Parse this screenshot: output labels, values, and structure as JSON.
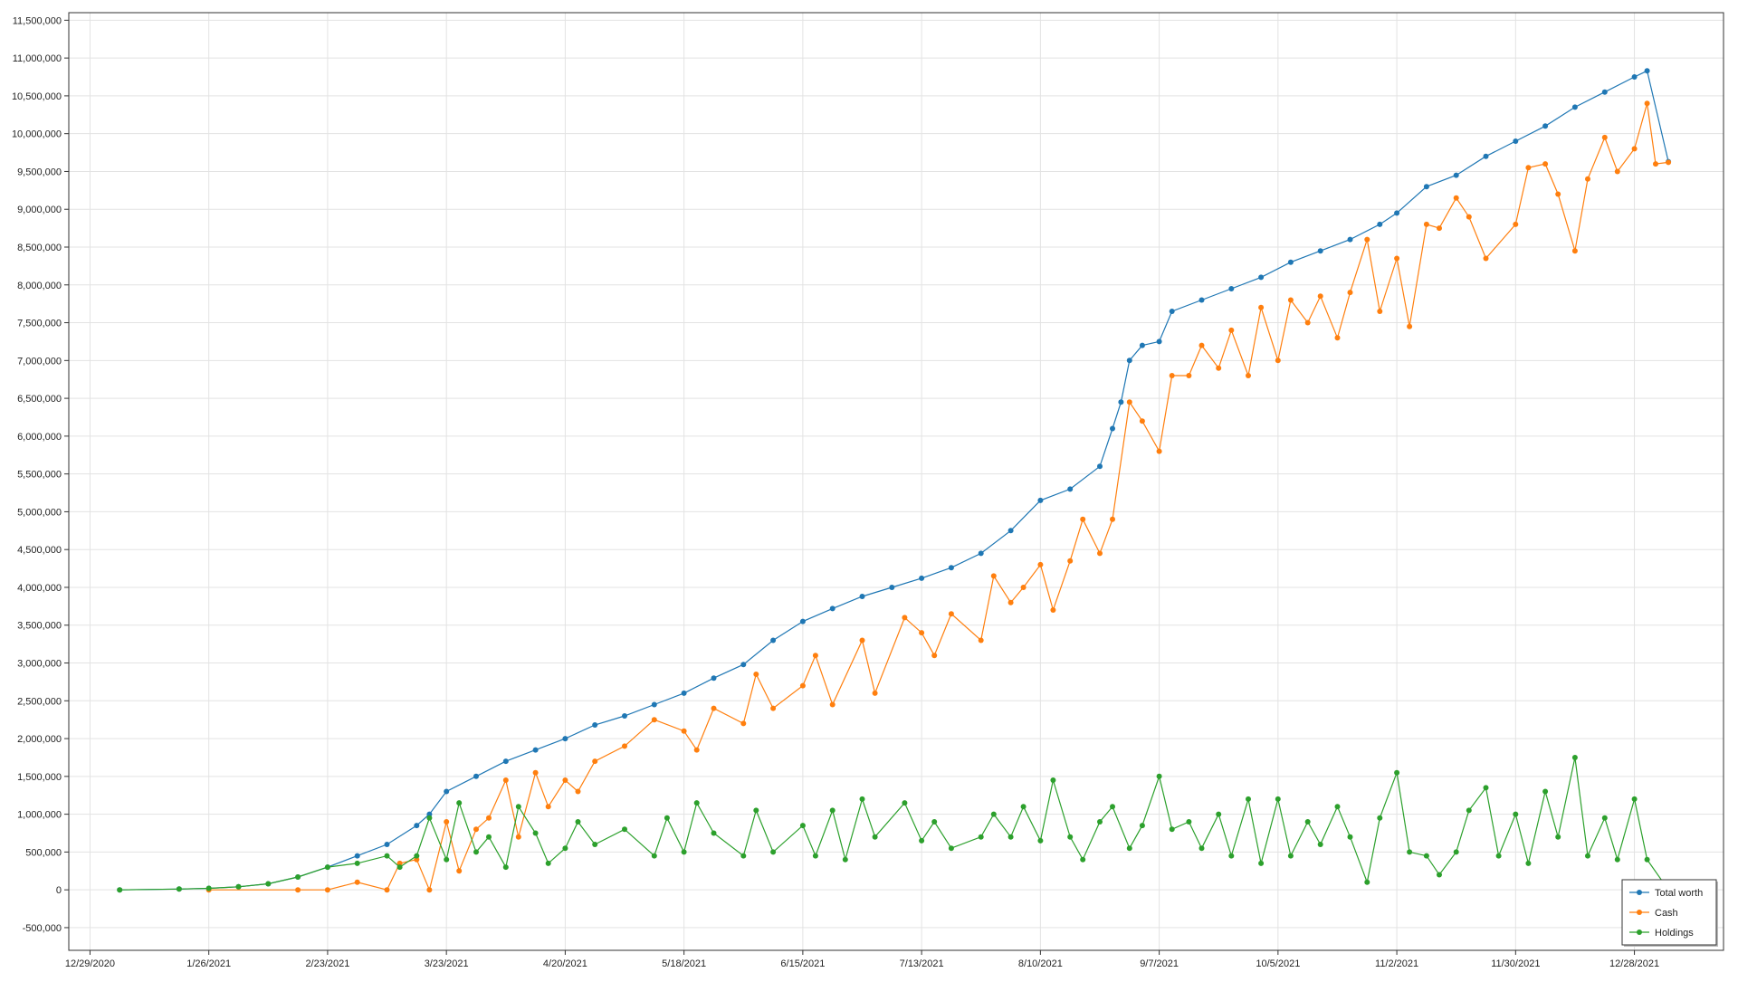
{
  "chart_data": {
    "type": "line",
    "title": "",
    "xlabel": "",
    "ylabel": "",
    "x_ticks": [
      "12/29/2020",
      "1/26/2021",
      "2/23/2021",
      "3/23/2021",
      "4/20/2021",
      "5/18/2021",
      "6/15/2021",
      "7/13/2021",
      "8/10/2021",
      "9/7/2021",
      "10/5/2021",
      "11/2/2021",
      "11/30/2021",
      "12/28/2021"
    ],
    "y_ticks": [
      "-500,000",
      "0",
      "500,000",
      "1,000,000",
      "1,500,000",
      "2,000,000",
      "2,500,000",
      "3,000,000",
      "3,500,000",
      "4,000,000",
      "4,500,000",
      "5,000,000",
      "5,500,000",
      "6,000,000",
      "6,500,000",
      "7,000,000",
      "7,500,000",
      "8,000,000",
      "8,500,000",
      "9,000,000",
      "9,500,000",
      "10,000,000",
      "10,500,000",
      "11,000,000",
      "11,500,000"
    ],
    "xlim": [
      "12/24/2020",
      "1/18/2022"
    ],
    "ylim": [
      -800000,
      11600000
    ],
    "grid": true,
    "legend_position": "bottom-right",
    "series": [
      {
        "name": "Total worth",
        "color": "#1f77b4",
        "points": [
          [
            "1/5/2021",
            0
          ],
          [
            "1/19/2021",
            10000
          ],
          [
            "1/26/2021",
            20000
          ],
          [
            "2/2/2021",
            40000
          ],
          [
            "2/9/2021",
            80000
          ],
          [
            "2/16/2021",
            170000
          ],
          [
            "2/23/2021",
            300000
          ],
          [
            "3/2/2021",
            450000
          ],
          [
            "3/9/2021",
            600000
          ],
          [
            "3/16/2021",
            850000
          ],
          [
            "3/19/2021",
            1000000
          ],
          [
            "3/23/2021",
            1300000
          ],
          [
            "3/30/2021",
            1500000
          ],
          [
            "4/6/2021",
            1700000
          ],
          [
            "4/13/2021",
            1850000
          ],
          [
            "4/20/2021",
            2000000
          ],
          [
            "4/27/2021",
            2180000
          ],
          [
            "5/4/2021",
            2300000
          ],
          [
            "5/11/2021",
            2450000
          ],
          [
            "5/18/2021",
            2600000
          ],
          [
            "5/25/2021",
            2800000
          ],
          [
            "6/1/2021",
            2980000
          ],
          [
            "6/8/2021",
            3300000
          ],
          [
            "6/15/2021",
            3550000
          ],
          [
            "6/22/2021",
            3720000
          ],
          [
            "6/29/2021",
            3880000
          ],
          [
            "7/6/2021",
            4000000
          ],
          [
            "7/13/2021",
            4120000
          ],
          [
            "7/20/2021",
            4260000
          ],
          [
            "7/27/2021",
            4450000
          ],
          [
            "8/3/2021",
            4750000
          ],
          [
            "8/10/2021",
            5150000
          ],
          [
            "8/17/2021",
            5300000
          ],
          [
            "8/24/2021",
            5600000
          ],
          [
            "8/27/2021",
            6100000
          ],
          [
            "8/29/2021",
            6450000
          ],
          [
            "8/31/2021",
            7000000
          ],
          [
            "9/3/2021",
            7200000
          ],
          [
            "9/7/2021",
            7250000
          ],
          [
            "9/10/2021",
            7650000
          ],
          [
            "9/17/2021",
            7800000
          ],
          [
            "9/24/2021",
            7950000
          ],
          [
            "10/1/2021",
            8100000
          ],
          [
            "10/8/2021",
            8300000
          ],
          [
            "10/15/2021",
            8450000
          ],
          [
            "10/22/2021",
            8600000
          ],
          [
            "10/29/2021",
            8800000
          ],
          [
            "11/2/2021",
            8950000
          ],
          [
            "11/9/2021",
            9300000
          ],
          [
            "11/16/2021",
            9450000
          ],
          [
            "11/23/2021",
            9700000
          ],
          [
            "11/30/2021",
            9900000
          ],
          [
            "12/7/2021",
            10100000
          ],
          [
            "12/14/2021",
            10350000
          ],
          [
            "12/21/2021",
            10550000
          ],
          [
            "12/28/2021",
            10750000
          ],
          [
            "12/31/2021",
            10830000
          ],
          [
            "1/5/2022",
            9630000
          ]
        ]
      },
      {
        "name": "Cash",
        "color": "#ff7f0e",
        "points": [
          [
            "1/26/2021",
            0
          ],
          [
            "2/16/2021",
            0
          ],
          [
            "2/23/2021",
            0
          ],
          [
            "3/2/2021",
            100000
          ],
          [
            "3/9/2021",
            0
          ],
          [
            "3/12/2021",
            350000
          ],
          [
            "3/16/2021",
            400000
          ],
          [
            "3/19/2021",
            0
          ],
          [
            "3/23/2021",
            900000
          ],
          [
            "3/26/2021",
            250000
          ],
          [
            "3/30/2021",
            800000
          ],
          [
            "4/2/2021",
            950000
          ],
          [
            "4/6/2021",
            1450000
          ],
          [
            "4/9/2021",
            700000
          ],
          [
            "4/13/2021",
            1550000
          ],
          [
            "4/16/2021",
            1100000
          ],
          [
            "4/20/2021",
            1450000
          ],
          [
            "4/23/2021",
            1300000
          ],
          [
            "4/27/2021",
            1700000
          ],
          [
            "5/4/2021",
            1900000
          ],
          [
            "5/11/2021",
            2250000
          ],
          [
            "5/18/2021",
            2100000
          ],
          [
            "5/21/2021",
            1850000
          ],
          [
            "5/25/2021",
            2400000
          ],
          [
            "6/1/2021",
            2200000
          ],
          [
            "6/4/2021",
            2850000
          ],
          [
            "6/8/2021",
            2400000
          ],
          [
            "6/15/2021",
            2700000
          ],
          [
            "6/18/2021",
            3100000
          ],
          [
            "6/22/2021",
            2450000
          ],
          [
            "6/29/2021",
            3300000
          ],
          [
            "7/2/2021",
            2600000
          ],
          [
            "7/9/2021",
            3600000
          ],
          [
            "7/13/2021",
            3400000
          ],
          [
            "7/16/2021",
            3100000
          ],
          [
            "7/20/2021",
            3650000
          ],
          [
            "7/27/2021",
            3300000
          ],
          [
            "7/30/2021",
            4150000
          ],
          [
            "8/3/2021",
            3800000
          ],
          [
            "8/6/2021",
            4000000
          ],
          [
            "8/10/2021",
            4300000
          ],
          [
            "8/13/2021",
            3700000
          ],
          [
            "8/17/2021",
            4350000
          ],
          [
            "8/20/2021",
            4900000
          ],
          [
            "8/24/2021",
            4450000
          ],
          [
            "8/27/2021",
            4900000
          ],
          [
            "8/31/2021",
            6450000
          ],
          [
            "9/3/2021",
            6200000
          ],
          [
            "9/7/2021",
            5800000
          ],
          [
            "9/10/2021",
            6800000
          ],
          [
            "9/14/2021",
            6800000
          ],
          [
            "9/17/2021",
            7200000
          ],
          [
            "9/21/2021",
            6900000
          ],
          [
            "9/24/2021",
            7400000
          ],
          [
            "9/28/2021",
            6800000
          ],
          [
            "10/1/2021",
            7700000
          ],
          [
            "10/5/2021",
            7000000
          ],
          [
            "10/8/2021",
            7800000
          ],
          [
            "10/12/2021",
            7500000
          ],
          [
            "10/15/2021",
            7850000
          ],
          [
            "10/19/2021",
            7300000
          ],
          [
            "10/22/2021",
            7900000
          ],
          [
            "10/26/2021",
            8600000
          ],
          [
            "10/29/2021",
            7650000
          ],
          [
            "11/2/2021",
            8350000
          ],
          [
            "11/5/2021",
            7450000
          ],
          [
            "11/9/2021",
            8800000
          ],
          [
            "11/12/2021",
            8750000
          ],
          [
            "11/16/2021",
            9150000
          ],
          [
            "11/19/2021",
            8900000
          ],
          [
            "11/23/2021",
            8350000
          ],
          [
            "11/30/2021",
            8800000
          ],
          [
            "12/3/2021",
            9550000
          ],
          [
            "12/7/2021",
            9600000
          ],
          [
            "12/10/2021",
            9200000
          ],
          [
            "12/14/2021",
            8450000
          ],
          [
            "12/17/2021",
            9400000
          ],
          [
            "12/21/2021",
            9950000
          ],
          [
            "12/24/2021",
            9500000
          ],
          [
            "12/28/2021",
            9800000
          ],
          [
            "12/31/2021",
            10400000
          ],
          [
            "1/2/2022",
            9600000
          ],
          [
            "1/5/2022",
            9620000
          ]
        ]
      },
      {
        "name": "Holdings",
        "color": "#2ca02c",
        "points": [
          [
            "1/5/2021",
            0
          ],
          [
            "1/19/2021",
            10000
          ],
          [
            "1/26/2021",
            20000
          ],
          [
            "2/2/2021",
            40000
          ],
          [
            "2/9/2021",
            80000
          ],
          [
            "2/16/2021",
            170000
          ],
          [
            "2/23/2021",
            300000
          ],
          [
            "3/2/2021",
            350000
          ],
          [
            "3/9/2021",
            450000
          ],
          [
            "3/12/2021",
            300000
          ],
          [
            "3/16/2021",
            450000
          ],
          [
            "3/19/2021",
            950000
          ],
          [
            "3/23/2021",
            400000
          ],
          [
            "3/26/2021",
            1150000
          ],
          [
            "3/30/2021",
            500000
          ],
          [
            "4/2/2021",
            700000
          ],
          [
            "4/6/2021",
            300000
          ],
          [
            "4/9/2021",
            1100000
          ],
          [
            "4/13/2021",
            750000
          ],
          [
            "4/16/2021",
            350000
          ],
          [
            "4/20/2021",
            550000
          ],
          [
            "4/23/2021",
            900000
          ],
          [
            "4/27/2021",
            600000
          ],
          [
            "5/4/2021",
            800000
          ],
          [
            "5/11/2021",
            450000
          ],
          [
            "5/14/2021",
            950000
          ],
          [
            "5/18/2021",
            500000
          ],
          [
            "5/21/2021",
            1150000
          ],
          [
            "5/25/2021",
            750000
          ],
          [
            "6/1/2021",
            450000
          ],
          [
            "6/4/2021",
            1050000
          ],
          [
            "6/8/2021",
            500000
          ],
          [
            "6/15/2021",
            850000
          ],
          [
            "6/18/2021",
            450000
          ],
          [
            "6/22/2021",
            1050000
          ],
          [
            "6/25/2021",
            400000
          ],
          [
            "6/29/2021",
            1200000
          ],
          [
            "7/2/2021",
            700000
          ],
          [
            "7/9/2021",
            1150000
          ],
          [
            "7/13/2021",
            650000
          ],
          [
            "7/16/2021",
            900000
          ],
          [
            "7/20/2021",
            550000
          ],
          [
            "7/27/2021",
            700000
          ],
          [
            "7/30/2021",
            1000000
          ],
          [
            "8/3/2021",
            700000
          ],
          [
            "8/6/2021",
            1100000
          ],
          [
            "8/10/2021",
            650000
          ],
          [
            "8/13/2021",
            1450000
          ],
          [
            "8/17/2021",
            700000
          ],
          [
            "8/20/2021",
            400000
          ],
          [
            "8/24/2021",
            900000
          ],
          [
            "8/27/2021",
            1100000
          ],
          [
            "8/31/2021",
            550000
          ],
          [
            "9/3/2021",
            850000
          ],
          [
            "9/7/2021",
            1500000
          ],
          [
            "9/10/2021",
            800000
          ],
          [
            "9/14/2021",
            900000
          ],
          [
            "9/17/2021",
            550000
          ],
          [
            "9/21/2021",
            1000000
          ],
          [
            "9/24/2021",
            450000
          ],
          [
            "9/28/2021",
            1200000
          ],
          [
            "10/1/2021",
            350000
          ],
          [
            "10/5/2021",
            1200000
          ],
          [
            "10/8/2021",
            450000
          ],
          [
            "10/12/2021",
            900000
          ],
          [
            "10/15/2021",
            600000
          ],
          [
            "10/19/2021",
            1100000
          ],
          [
            "10/22/2021",
            700000
          ],
          [
            "10/26/2021",
            100000
          ],
          [
            "10/29/2021",
            950000
          ],
          [
            "11/2/2021",
            1550000
          ],
          [
            "11/5/2021",
            500000
          ],
          [
            "11/9/2021",
            450000
          ],
          [
            "11/12/2021",
            200000
          ],
          [
            "11/16/2021",
            500000
          ],
          [
            "11/19/2021",
            1050000
          ],
          [
            "11/23/2021",
            1350000
          ],
          [
            "11/26/2021",
            450000
          ],
          [
            "11/30/2021",
            1000000
          ],
          [
            "12/3/2021",
            350000
          ],
          [
            "12/7/2021",
            1300000
          ],
          [
            "12/10/2021",
            700000
          ],
          [
            "12/14/2021",
            1750000
          ],
          [
            "12/17/2021",
            450000
          ],
          [
            "12/21/2021",
            950000
          ],
          [
            "12/24/2021",
            400000
          ],
          [
            "12/28/2021",
            1200000
          ],
          [
            "12/31/2021",
            400000
          ],
          [
            "1/5/2022",
            0
          ]
        ]
      }
    ]
  }
}
